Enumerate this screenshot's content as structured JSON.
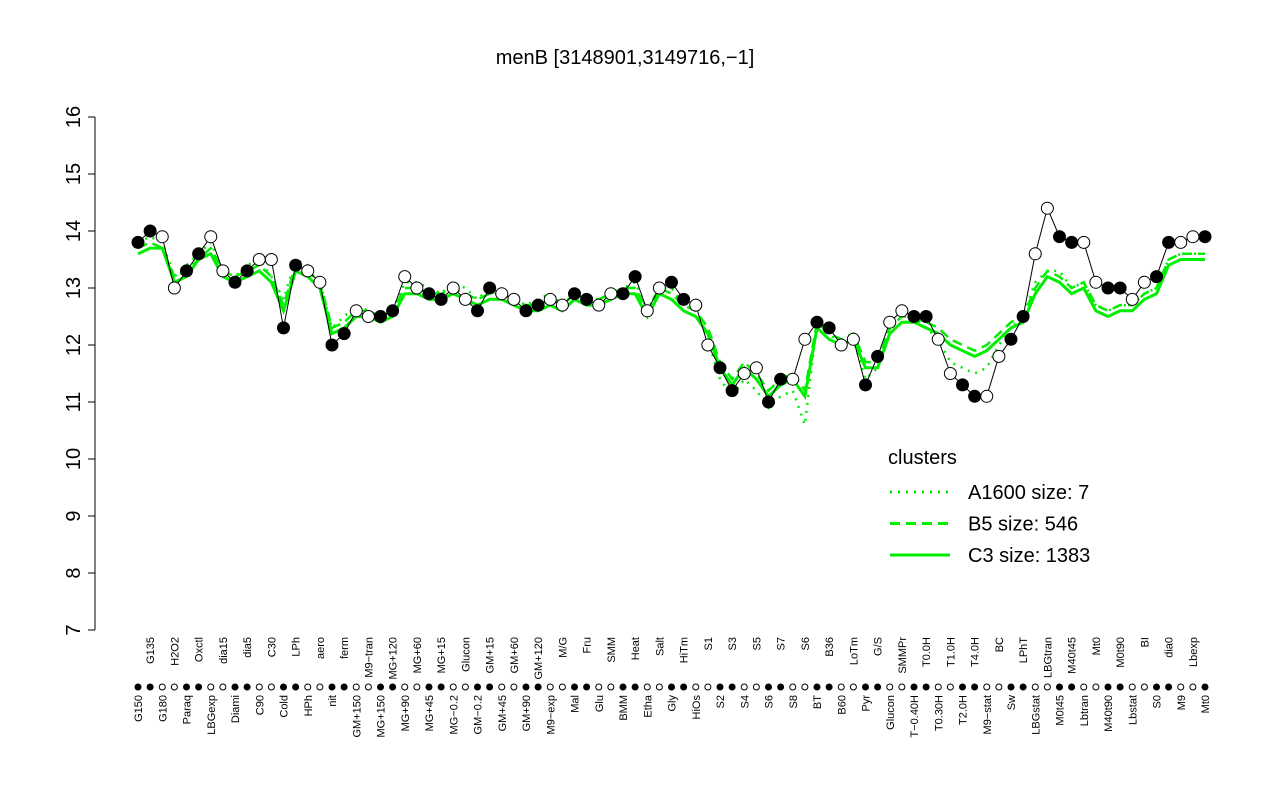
{
  "chart_data": {
    "type": "line",
    "title": "menB [3148901,3149716,−1]",
    "categories": [
      "G150",
      "G135",
      "G180",
      "H2O2",
      "Paraq",
      "Oxctl",
      "LBGexp",
      "dia15",
      "Diami",
      "dia5",
      "C90",
      "C30",
      "Cold",
      "LPh",
      "HPh",
      "aero",
      "nit",
      "ferm",
      "GM+150",
      "M9−tran",
      "MG+150",
      "MG+120",
      "MG+90",
      "MG+60",
      "MG+45",
      "MG+15",
      "MG−0.2",
      "Glucon",
      "GM−0.2",
      "GM+15",
      "GM+45",
      "GM+60",
      "GM+90",
      "GM+120",
      "M9−exp",
      "M/G",
      "Mal",
      "Fru",
      "Glu",
      "SMM",
      "BMM",
      "Heat",
      "Etha",
      "Salt",
      "Gly",
      "HiTm",
      "HiOs",
      "S1",
      "S2",
      "S3",
      "S4",
      "S5",
      "S6",
      "S7",
      "S8",
      "S6",
      "BT",
      "B36",
      "B60",
      "LoTm",
      "Pyr",
      "G/S",
      "Glucon",
      "SMMPr",
      "T−0.40H",
      "T0.0H",
      "T0.30H",
      "T1.0H",
      "T2.0H",
      "T4.0H",
      "M9−stat",
      "BC",
      "Sw",
      "LPhT",
      "LBGstat",
      "LBGtran",
      "M0t45",
      "M40t45",
      "Lbtran",
      "Mt0",
      "M40t90",
      "M0t90",
      "Lbstat",
      "BI",
      "S0",
      "dia0",
      "M9",
      "Lbexp",
      "Mt0"
    ],
    "values": [
      13.8,
      14.0,
      13.9,
      13.0,
      13.3,
      13.6,
      13.9,
      13.3,
      13.1,
      13.3,
      13.5,
      13.5,
      12.3,
      13.4,
      13.3,
      13.1,
      12.0,
      12.2,
      12.6,
      12.5,
      12.5,
      12.6,
      13.2,
      13.0,
      12.9,
      12.8,
      13.0,
      12.8,
      12.6,
      13.0,
      12.9,
      12.8,
      12.6,
      12.7,
      12.8,
      12.7,
      12.9,
      12.8,
      12.7,
      12.9,
      12.9,
      13.2,
      12.6,
      13.0,
      13.1,
      12.8,
      12.7,
      12.0,
      11.6,
      11.2,
      11.5,
      11.6,
      11.0,
      11.4,
      11.4,
      12.1,
      12.4,
      12.3,
      12.0,
      12.1,
      11.3,
      11.8,
      12.4,
      12.6,
      12.5,
      12.5,
      12.1,
      11.5,
      11.3,
      11.1,
      11.1,
      11.8,
      12.1,
      12.5,
      13.6,
      14.4,
      13.9,
      13.8,
      13.8,
      13.1,
      13.0,
      13.0,
      12.8,
      13.1,
      13.2,
      13.8,
      13.8,
      13.9,
      13.9
    ],
    "color": "#000000",
    "legend_title": "clusters",
    "series": [
      {
        "name": "A1600 size: 7",
        "color": "#00ee00",
        "linestyle": "dotted",
        "values": [
          13.8,
          13.9,
          13.8,
          13.2,
          13.4,
          13.6,
          13.8,
          13.3,
          13.2,
          13.4,
          13.5,
          13.2,
          12.8,
          13.5,
          13.4,
          13.1,
          12.3,
          12.5,
          12.7,
          12.6,
          12.5,
          12.6,
          13.1,
          13.1,
          13.0,
          12.9,
          13.1,
          13.0,
          12.8,
          13.0,
          12.9,
          12.8,
          12.7,
          12.8,
          12.9,
          12.7,
          12.9,
          12.8,
          12.8,
          12.9,
          13.0,
          13.1,
          12.6,
          13.0,
          13.0,
          12.7,
          12.6,
          12.1,
          11.4,
          11.1,
          11.4,
          11.2,
          10.9,
          11.1,
          11.2,
          10.6,
          12.4,
          12.2,
          12.0,
          12.1,
          11.4,
          11.6,
          12.4,
          12.6,
          12.5,
          12.3,
          12.1,
          11.7,
          11.6,
          11.5,
          11.6,
          12.0,
          12.3,
          12.5,
          13.1,
          13.3,
          13.3,
          13.0,
          13.1,
          12.7,
          12.6,
          12.7,
          12.7,
          12.9,
          13.0,
          13.5,
          13.6,
          13.6,
          13.6
        ]
      },
      {
        "name": "B5 size: 546",
        "color": "#00ee00",
        "linestyle": "dashed",
        "values": [
          13.7,
          13.8,
          13.7,
          13.2,
          13.3,
          13.5,
          13.7,
          13.3,
          13.2,
          13.3,
          13.4,
          13.2,
          12.7,
          13.4,
          13.3,
          13.1,
          12.3,
          12.4,
          12.6,
          12.6,
          12.5,
          12.6,
          13.0,
          13.0,
          12.9,
          12.9,
          13.0,
          12.9,
          12.8,
          12.9,
          12.9,
          12.8,
          12.7,
          12.7,
          12.8,
          12.7,
          12.9,
          12.8,
          12.8,
          12.9,
          13.0,
          13.0,
          12.6,
          13.0,
          12.9,
          12.7,
          12.6,
          12.3,
          11.7,
          11.4,
          11.7,
          11.5,
          11.2,
          11.4,
          11.5,
          11.2,
          12.4,
          12.2,
          12.1,
          12.2,
          11.7,
          11.7,
          12.3,
          12.5,
          12.5,
          12.4,
          12.3,
          12.1,
          12.0,
          11.9,
          12.0,
          12.2,
          12.4,
          12.5,
          13.0,
          13.3,
          13.2,
          13.0,
          13.1,
          12.7,
          12.6,
          12.7,
          12.7,
          12.9,
          13.0,
          13.5,
          13.6,
          13.6,
          13.6
        ]
      },
      {
        "name": "C3 size: 1383",
        "color": "#00ee00",
        "linestyle": "solid",
        "values": [
          13.6,
          13.7,
          13.7,
          13.1,
          13.2,
          13.5,
          13.6,
          13.2,
          13.1,
          13.2,
          13.3,
          13.1,
          12.6,
          13.3,
          13.2,
          13.0,
          12.2,
          12.3,
          12.5,
          12.5,
          12.4,
          12.5,
          12.9,
          12.9,
          12.8,
          12.8,
          12.9,
          12.8,
          12.7,
          12.8,
          12.8,
          12.7,
          12.6,
          12.6,
          12.7,
          12.6,
          12.8,
          12.7,
          12.7,
          12.8,
          12.9,
          12.9,
          12.5,
          12.9,
          12.8,
          12.6,
          12.5,
          12.2,
          11.6,
          11.3,
          11.6,
          11.4,
          11.1,
          11.3,
          11.4,
          11.1,
          12.3,
          12.1,
          12.0,
          12.1,
          11.6,
          11.6,
          12.2,
          12.4,
          12.4,
          12.3,
          12.2,
          12.0,
          11.9,
          11.8,
          11.9,
          12.1,
          12.3,
          12.4,
          12.9,
          13.2,
          13.1,
          12.9,
          13.0,
          12.6,
          12.5,
          12.6,
          12.6,
          12.8,
          12.9,
          13.4,
          13.5,
          13.5,
          13.5
        ]
      }
    ],
    "ylim": [
      7,
      16
    ],
    "yticks": [
      7,
      8,
      9,
      10,
      11,
      12,
      13,
      14,
      15,
      16
    ]
  }
}
